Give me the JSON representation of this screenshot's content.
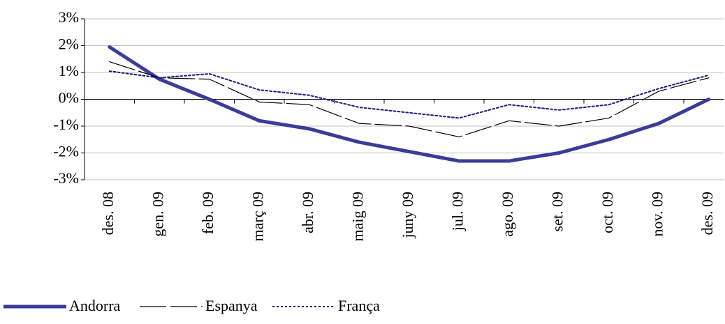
{
  "chart_data": {
    "type": "line",
    "categories": [
      "des. 08",
      "gen. 09",
      "feb. 09",
      "març 09",
      "abr. 09",
      "maig 09",
      "juny 09",
      "jul. 09",
      "ago. 09",
      "set. 09",
      "oct. 09",
      "nov. 09",
      "des. 09"
    ],
    "series": [
      {
        "name": "Andorra",
        "color": "#3b3b99",
        "values": [
          1.95,
          0.75,
          0.0,
          -0.8,
          -1.1,
          -1.6,
          -1.95,
          -2.3,
          -2.3,
          -2.0,
          -1.5,
          -0.9,
          0.0
        ]
      },
      {
        "name": "Espanya",
        "color": "#000000",
        "values": [
          1.4,
          0.8,
          0.75,
          -0.1,
          -0.2,
          -0.9,
          -1.0,
          -1.4,
          -0.8,
          -1.0,
          -0.7,
          0.3,
          0.8
        ]
      },
      {
        "name": "França",
        "color": "#1a1a80",
        "values": [
          1.05,
          0.8,
          0.95,
          0.35,
          0.15,
          -0.3,
          -0.5,
          -0.7,
          -0.2,
          -0.4,
          -0.2,
          0.4,
          0.9
        ]
      }
    ],
    "ylim": [
      -3,
      3
    ],
    "yticks": [
      {
        "value": -3,
        "label": "-3%"
      },
      {
        "value": -2,
        "label": "-2%"
      },
      {
        "value": -1,
        "label": "-1%"
      },
      {
        "value": 0,
        "label": "0%"
      },
      {
        "value": 1,
        "label": "1%"
      },
      {
        "value": 2,
        "label": "2%"
      },
      {
        "value": 3,
        "label": "3%"
      }
    ],
    "grid": true,
    "legend": "bottom-left"
  }
}
